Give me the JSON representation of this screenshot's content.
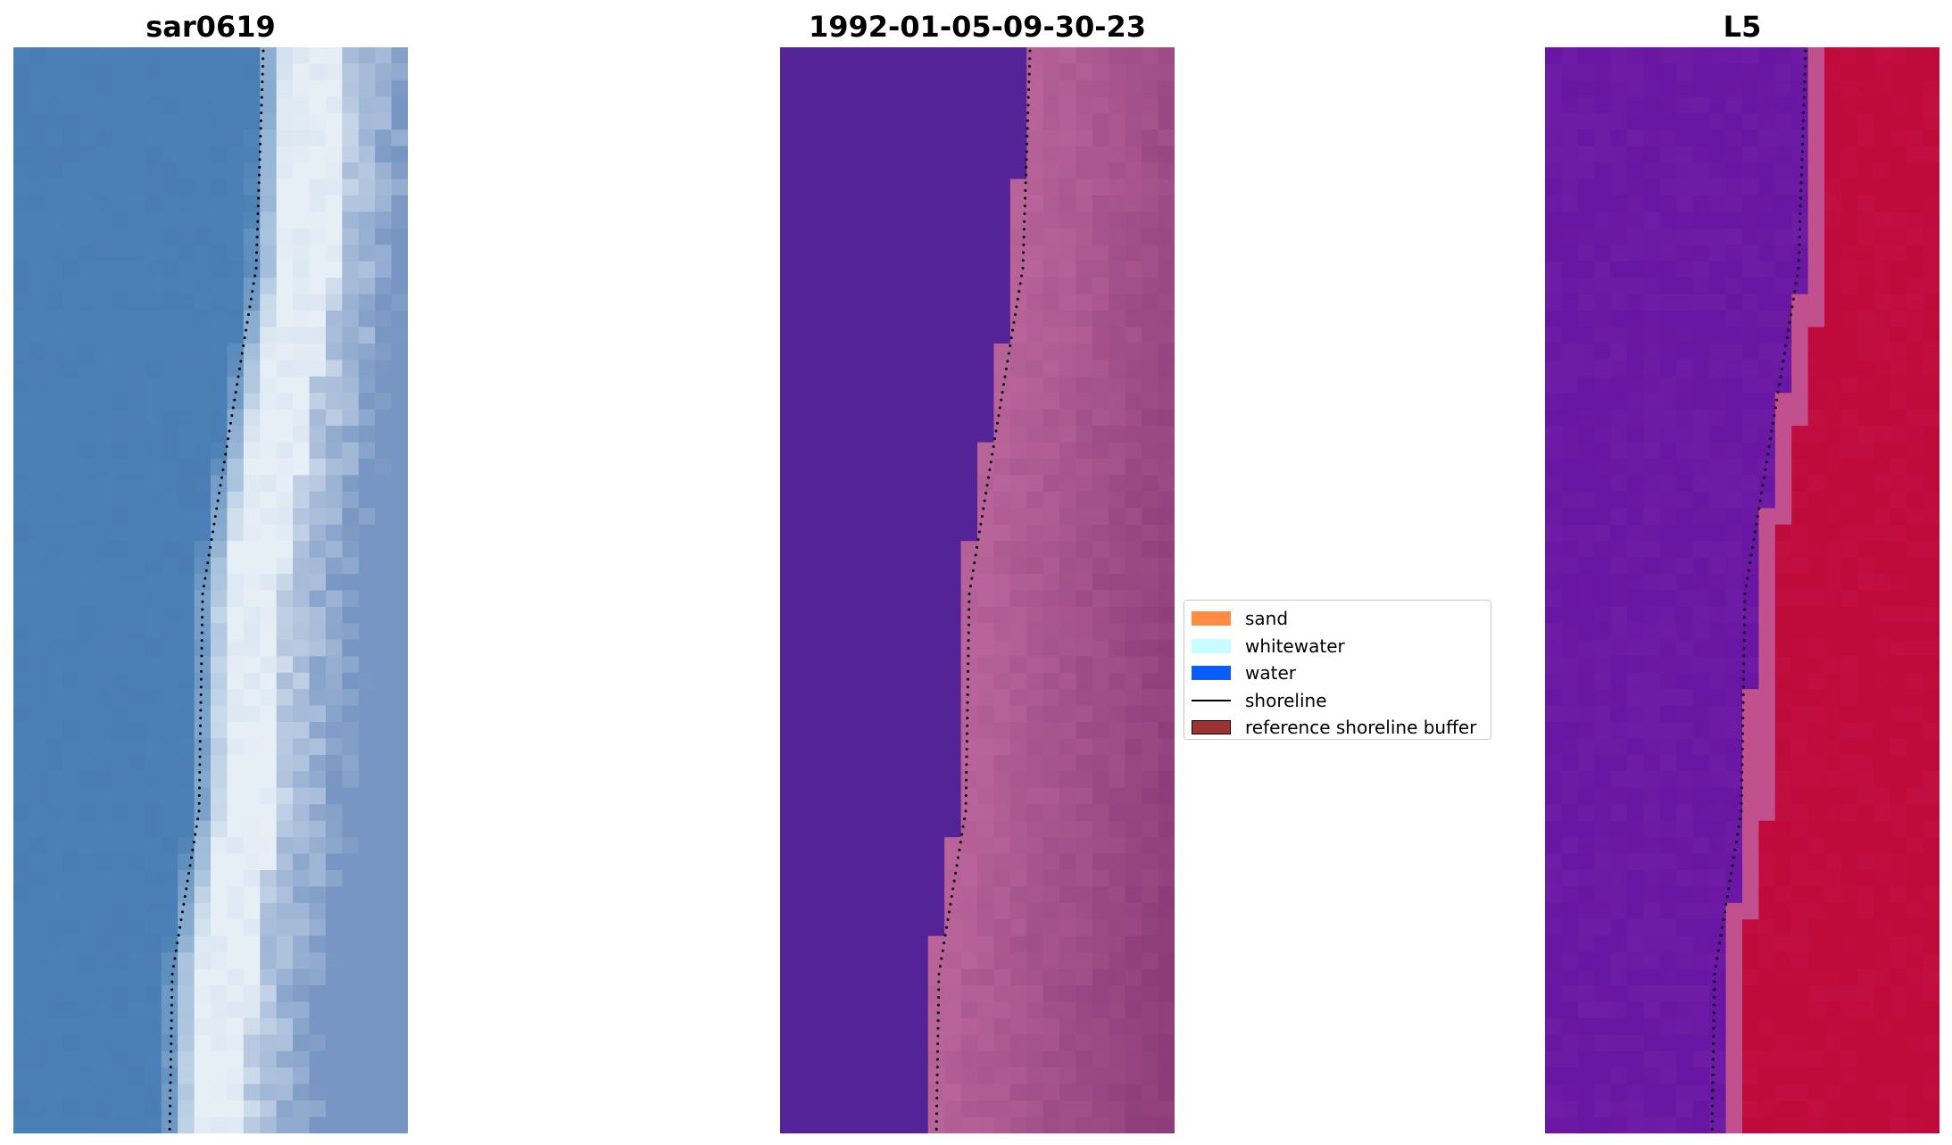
{
  "panels": [
    {
      "id": "rgb",
      "title": "sar0619"
    },
    {
      "id": "classified",
      "title": "1992-01-05-09-30-23"
    },
    {
      "id": "ratio",
      "title": "L5"
    }
  ],
  "legend": {
    "items": [
      {
        "label": "sand",
        "color": "#ff8c42",
        "kind": "patch"
      },
      {
        "label": "whitewater",
        "color": "#c8fcff",
        "kind": "patch"
      },
      {
        "label": "water",
        "color": "#0a5cff",
        "kind": "patch"
      },
      {
        "label": "shoreline",
        "color": "#000000",
        "kind": "line"
      },
      {
        "label": "reference shoreline buffer",
        "color": "#9b3333",
        "kind": "patch-edged"
      }
    ]
  },
  "colors": {
    "rgb_water": "#4a80b6",
    "rgb_surf": "#e6eef6",
    "classified_water": "#552398",
    "classified_land": "#b8649a",
    "ratio_water": "#6a16a4",
    "ratio_land": "#bf0a3c",
    "ratio_buffer": "#c0508e"
  }
}
